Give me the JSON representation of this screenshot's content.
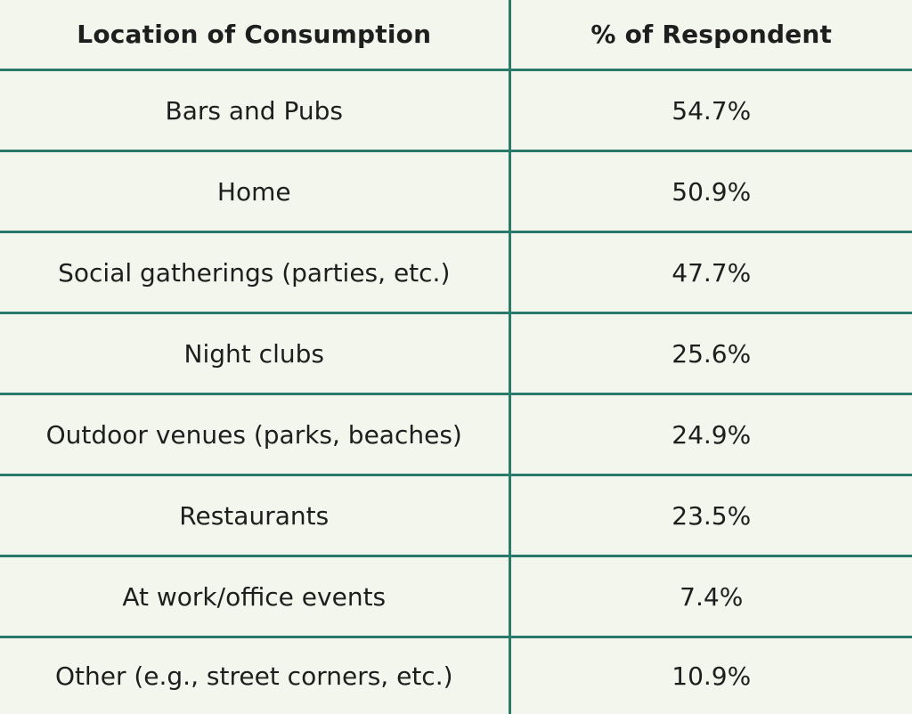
{
  "chart_data": {
    "type": "table",
    "columns": [
      "Location of Consumption",
      "% of Respondent"
    ],
    "rows": [
      [
        "Bars and Pubs",
        "54.7%"
      ],
      [
        "Home",
        "50.9%"
      ],
      [
        "Social gatherings (parties, etc.)",
        "47.7%"
      ],
      [
        "Night clubs",
        "25.6%"
      ],
      [
        "Outdoor venues (parks, beaches)",
        "24.9%"
      ],
      [
        "Restaurants",
        "23.5%"
      ],
      [
        "At work/office events",
        "7.4%"
      ],
      [
        "Other (e.g., street corners, etc.)",
        "10.9%"
      ]
    ],
    "values": [
      54.7,
      50.9,
      47.7,
      25.6,
      24.9,
      23.5,
      7.4,
      10.9
    ],
    "colors": {
      "background": "#f3f6ec",
      "rule": "#2a7a6c",
      "text": "#1e1e1e"
    }
  }
}
